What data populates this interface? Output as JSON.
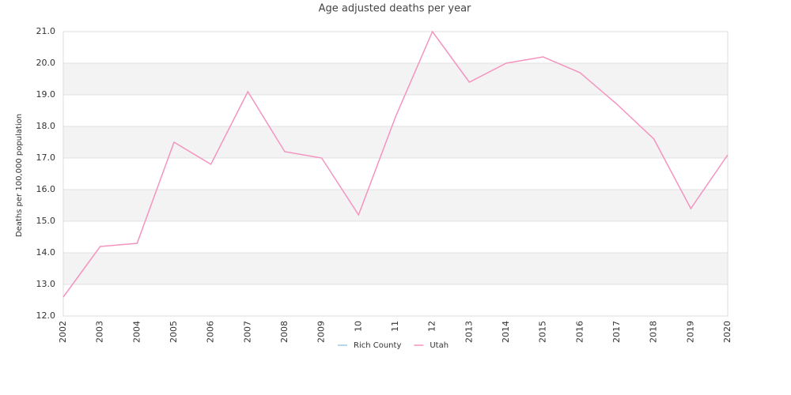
{
  "chart_data": {
    "type": "line",
    "title": "Age adjusted deaths per year",
    "y_label": "Deaths per 100,000 population",
    "categories": [
      "2002",
      "2003",
      "2004",
      "2005",
      "2006",
      "2007",
      "2008",
      "2009",
      "10",
      "11",
      "12",
      "2013",
      "2014",
      "2015",
      "2016",
      "2017",
      "2018",
      "2019",
      "2020"
    ],
    "series": [
      {
        "name": "Rich County",
        "color": "#9ecae9",
        "values": [
          null,
          null,
          null,
          null,
          null,
          null,
          null,
          null,
          null,
          null,
          null,
          null,
          null,
          null,
          null,
          null,
          null,
          null,
          null
        ]
      },
      {
        "name": "Utah",
        "color": "#f394c0",
        "values": [
          12.6,
          14.2,
          14.3,
          17.5,
          16.8,
          19.1,
          17.2,
          17.0,
          15.2,
          18.3,
          21.0,
          19.4,
          20.0,
          20.2,
          19.7,
          18.7,
          17.6,
          15.4,
          17.1
        ]
      }
    ],
    "ylim": [
      12,
      21
    ],
    "yticks": [
      {
        "value": 12,
        "label": "12.0"
      },
      {
        "value": 13,
        "label": "13.0"
      },
      {
        "value": 14,
        "label": "14.0"
      },
      {
        "value": 15,
        "label": "15.0"
      },
      {
        "value": 16,
        "label": "16.0"
      },
      {
        "value": 17,
        "label": "17.0"
      },
      {
        "value": 18,
        "label": "18.0"
      },
      {
        "value": 19,
        "label": "19.0"
      },
      {
        "value": 20,
        "label": "20.0"
      },
      {
        "value": 21,
        "label": "21.0"
      }
    ],
    "grid": true,
    "legend": "bottom"
  }
}
